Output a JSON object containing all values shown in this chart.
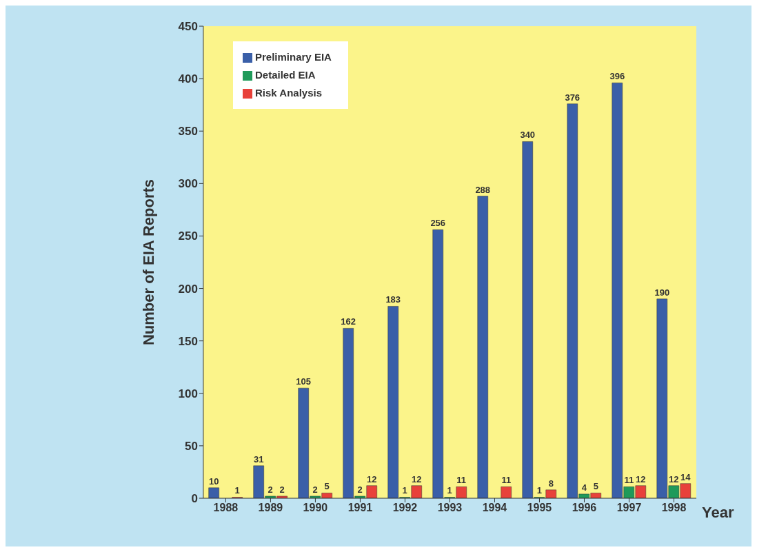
{
  "chart_data": {
    "type": "bar",
    "xlabel": "Year",
    "ylabel": "Number of EIA Reports",
    "categories": [
      "1988",
      "1989",
      "1990",
      "1991",
      "1992",
      "1993",
      "1994",
      "1995",
      "1996",
      "1997",
      "1998"
    ],
    "series": [
      {
        "name": "Preliminary EIA",
        "color": "#3a5fa8",
        "values": [
          10,
          31,
          105,
          162,
          183,
          256,
          288,
          340,
          376,
          396,
          190
        ]
      },
      {
        "name": "Detailed EIA",
        "color": "#1f9a5a",
        "values": [
          null,
          2,
          2,
          2,
          1,
          1,
          null,
          1,
          4,
          11,
          12
        ]
      },
      {
        "name": "Risk Analysis",
        "color": "#e8413a",
        "values": [
          1,
          2,
          5,
          12,
          12,
          11,
          11,
          8,
          5,
          12,
          14
        ]
      }
    ],
    "ylim": [
      0,
      450
    ],
    "yticks": [
      0,
      50,
      100,
      150,
      200,
      250,
      300,
      350,
      400,
      450
    ],
    "grid": false,
    "legend": "top left",
    "data_labels": true
  }
}
